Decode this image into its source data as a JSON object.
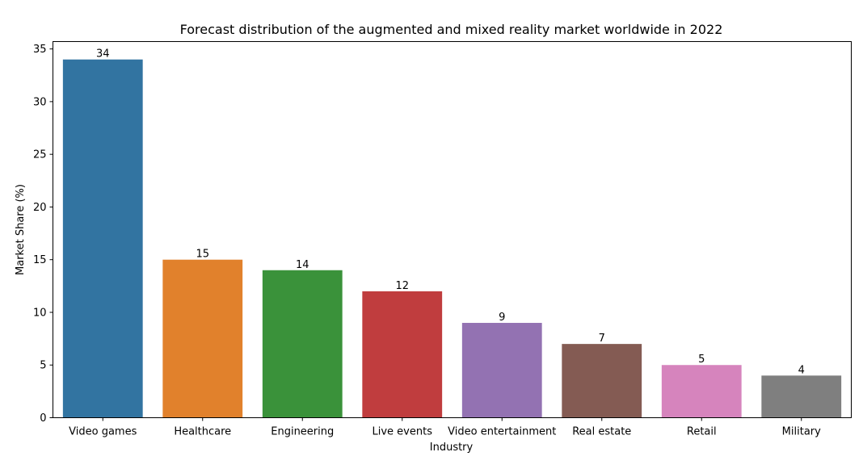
{
  "chart_data": {
    "type": "bar",
    "title": "Forecast distribution of the augmented and mixed reality market worldwide in 2022",
    "xlabel": "Industry",
    "ylabel": "Market Share (%)",
    "categories": [
      "Video games",
      "Healthcare",
      "Engineering",
      "Live events",
      "Video entertainment",
      "Real estate",
      "Retail",
      "Military"
    ],
    "values": [
      34,
      15,
      14,
      12,
      9,
      7,
      5,
      4
    ],
    "colors": [
      "#3274a1",
      "#e1812c",
      "#3a923a",
      "#c03d3e",
      "#9372b2",
      "#845b53",
      "#d684bd",
      "#7f7f7f"
    ],
    "ylim": [
      0,
      35.7
    ],
    "yticks": [
      0,
      5,
      10,
      15,
      20,
      25,
      30,
      35
    ],
    "grid": false,
    "data_labels": true
  }
}
